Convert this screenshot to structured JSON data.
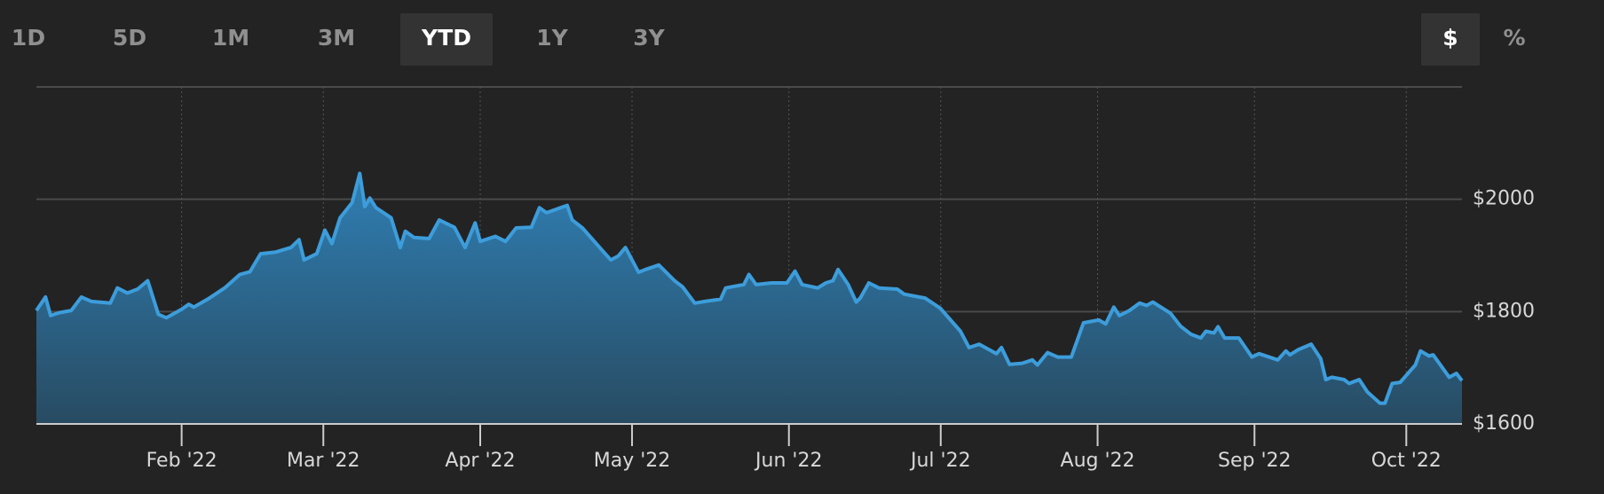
{
  "controls": {
    "ranges": [
      "1D",
      "5D",
      "1M",
      "3M",
      "YTD",
      "1Y",
      "3Y"
    ],
    "active_range": 4,
    "units": [
      "$",
      "%"
    ],
    "active_unit": 0
  },
  "chart_data": {
    "type": "area",
    "color": "#3d9ddb",
    "grid": true,
    "x": [
      2.3,
      4.1,
      5.1,
      6.8,
      9.2,
      11.2,
      13.2,
      16.9,
      18.3,
      20.3,
      22.3,
      24.3,
      26.4,
      28,
      31,
      32.4,
      33.4,
      36.5,
      39.5,
      42.5,
      44.5,
      46.6,
      49.6,
      52.6,
      54.2,
      55.2,
      57.7,
      59.3,
      60.7,
      62.3,
      64.7,
      66.2,
      67.2,
      68.2,
      69.4,
      72.4,
      74.2,
      75.2,
      76.9,
      79.9,
      81.9,
      84.9,
      87,
      89,
      90,
      93,
      95,
      97.1,
      100.1,
      101.7,
      103.1,
      107.2,
      108.2,
      110.2,
      114.2,
      115.8,
      117.3,
      118.7,
      121.3,
      122.7,
      125.3,
      128.4,
      130,
      132.4,
      134.4,
      137.5,
      138.5,
      142.1,
      143.1,
      144.5,
      147.6,
      150.6,
      152.2,
      153.6,
      156.7,
      158.3,
      159.7,
      160.7,
      162.7,
      164.3,
      165.1,
      166.8,
      168.8,
      172.4,
      173.8,
      177.9,
      180.9,
      184.9,
      186.6,
      188.6,
      192,
      193,
      194.6,
      197.1,
      199.1,
      200.1,
      202.1,
      204.1,
      206.8,
      209.2,
      212.2,
      213.6,
      215.2,
      216.3,
      218.3,
      220.3,
      221.7,
      222.9,
      226.4,
      228.4,
      230.4,
      232.4,
      233.4,
      235,
      235.8,
      237.1,
      239.9,
      242.5,
      243.9,
      247.6,
      249.2,
      250,
      251.6,
      254.2,
      256.1,
      257.1,
      258.3,
      260.7,
      261.7,
      263.7,
      265.3,
      267.8,
      268.8,
      270.2,
      271.8,
      274.8,
      275.8,
      277.5,
      278.3,
      281.5,
      282.9,
      284
    ],
    "values": [
      1802,
      1826,
      1793,
      1798,
      1802,
      1826,
      1818,
      1815,
      1842,
      1833,
      1840,
      1855,
      1795,
      1789,
      1804,
      1813,
      1808,
      1824,
      1842,
      1866,
      1871,
      1903,
      1906,
      1914,
      1928,
      1892,
      1903,
      1945,
      1921,
      1967,
      1994,
      2046,
      1987,
      2002,
      1985,
      1967,
      1914,
      1943,
      1932,
      1930,
      1963,
      1950,
      1914,
      1958,
      1925,
      1934,
      1925,
      1949,
      1950,
      1985,
      1976,
      1989,
      1963,
      1949,
      1908,
      1892,
      1899,
      1914,
      1870,
      1875,
      1883,
      1855,
      1844,
      1815,
      1818,
      1822,
      1842,
      1848,
      1866,
      1848,
      1851,
      1851,
      1872,
      1848,
      1842,
      1851,
      1855,
      1875,
      1848,
      1817,
      1824,
      1851,
      1842,
      1840,
      1831,
      1824,
      1806,
      1765,
      1736,
      1742,
      1725,
      1736,
      1706,
      1708,
      1714,
      1705,
      1727,
      1719,
      1719,
      1780,
      1785,
      1778,
      1808,
      1793,
      1802,
      1815,
      1811,
      1817,
      1797,
      1774,
      1760,
      1753,
      1765,
      1762,
      1773,
      1753,
      1753,
      1719,
      1725,
      1714,
      1730,
      1723,
      1732,
      1742,
      1716,
      1679,
      1683,
      1679,
      1672,
      1679,
      1657,
      1637,
      1637,
      1672,
      1674,
      1705,
      1730,
      1721,
      1723,
      1683,
      1690,
      1677
    ],
    "xlim": [
      2.3,
      284
    ],
    "xticks": [
      {
        "value": 31,
        "label": "Feb '22"
      },
      {
        "value": 59,
        "label": "Mar '22"
      },
      {
        "value": 90,
        "label": "Apr '22"
      },
      {
        "value": 120,
        "label": "May '22"
      },
      {
        "value": 151,
        "label": "Jun '22"
      },
      {
        "value": 181,
        "label": "Jul '22"
      },
      {
        "value": 212,
        "label": "Aug '22"
      },
      {
        "value": 243,
        "label": "Sep '22"
      },
      {
        "value": 273,
        "label": "Oct '22"
      }
    ],
    "ylim": [
      1600,
      2200
    ],
    "yticks": [
      {
        "value": 1600,
        "label": "$1600"
      },
      {
        "value": 1800,
        "label": "$1800"
      },
      {
        "value": 2000,
        "label": "$2000"
      }
    ]
  }
}
